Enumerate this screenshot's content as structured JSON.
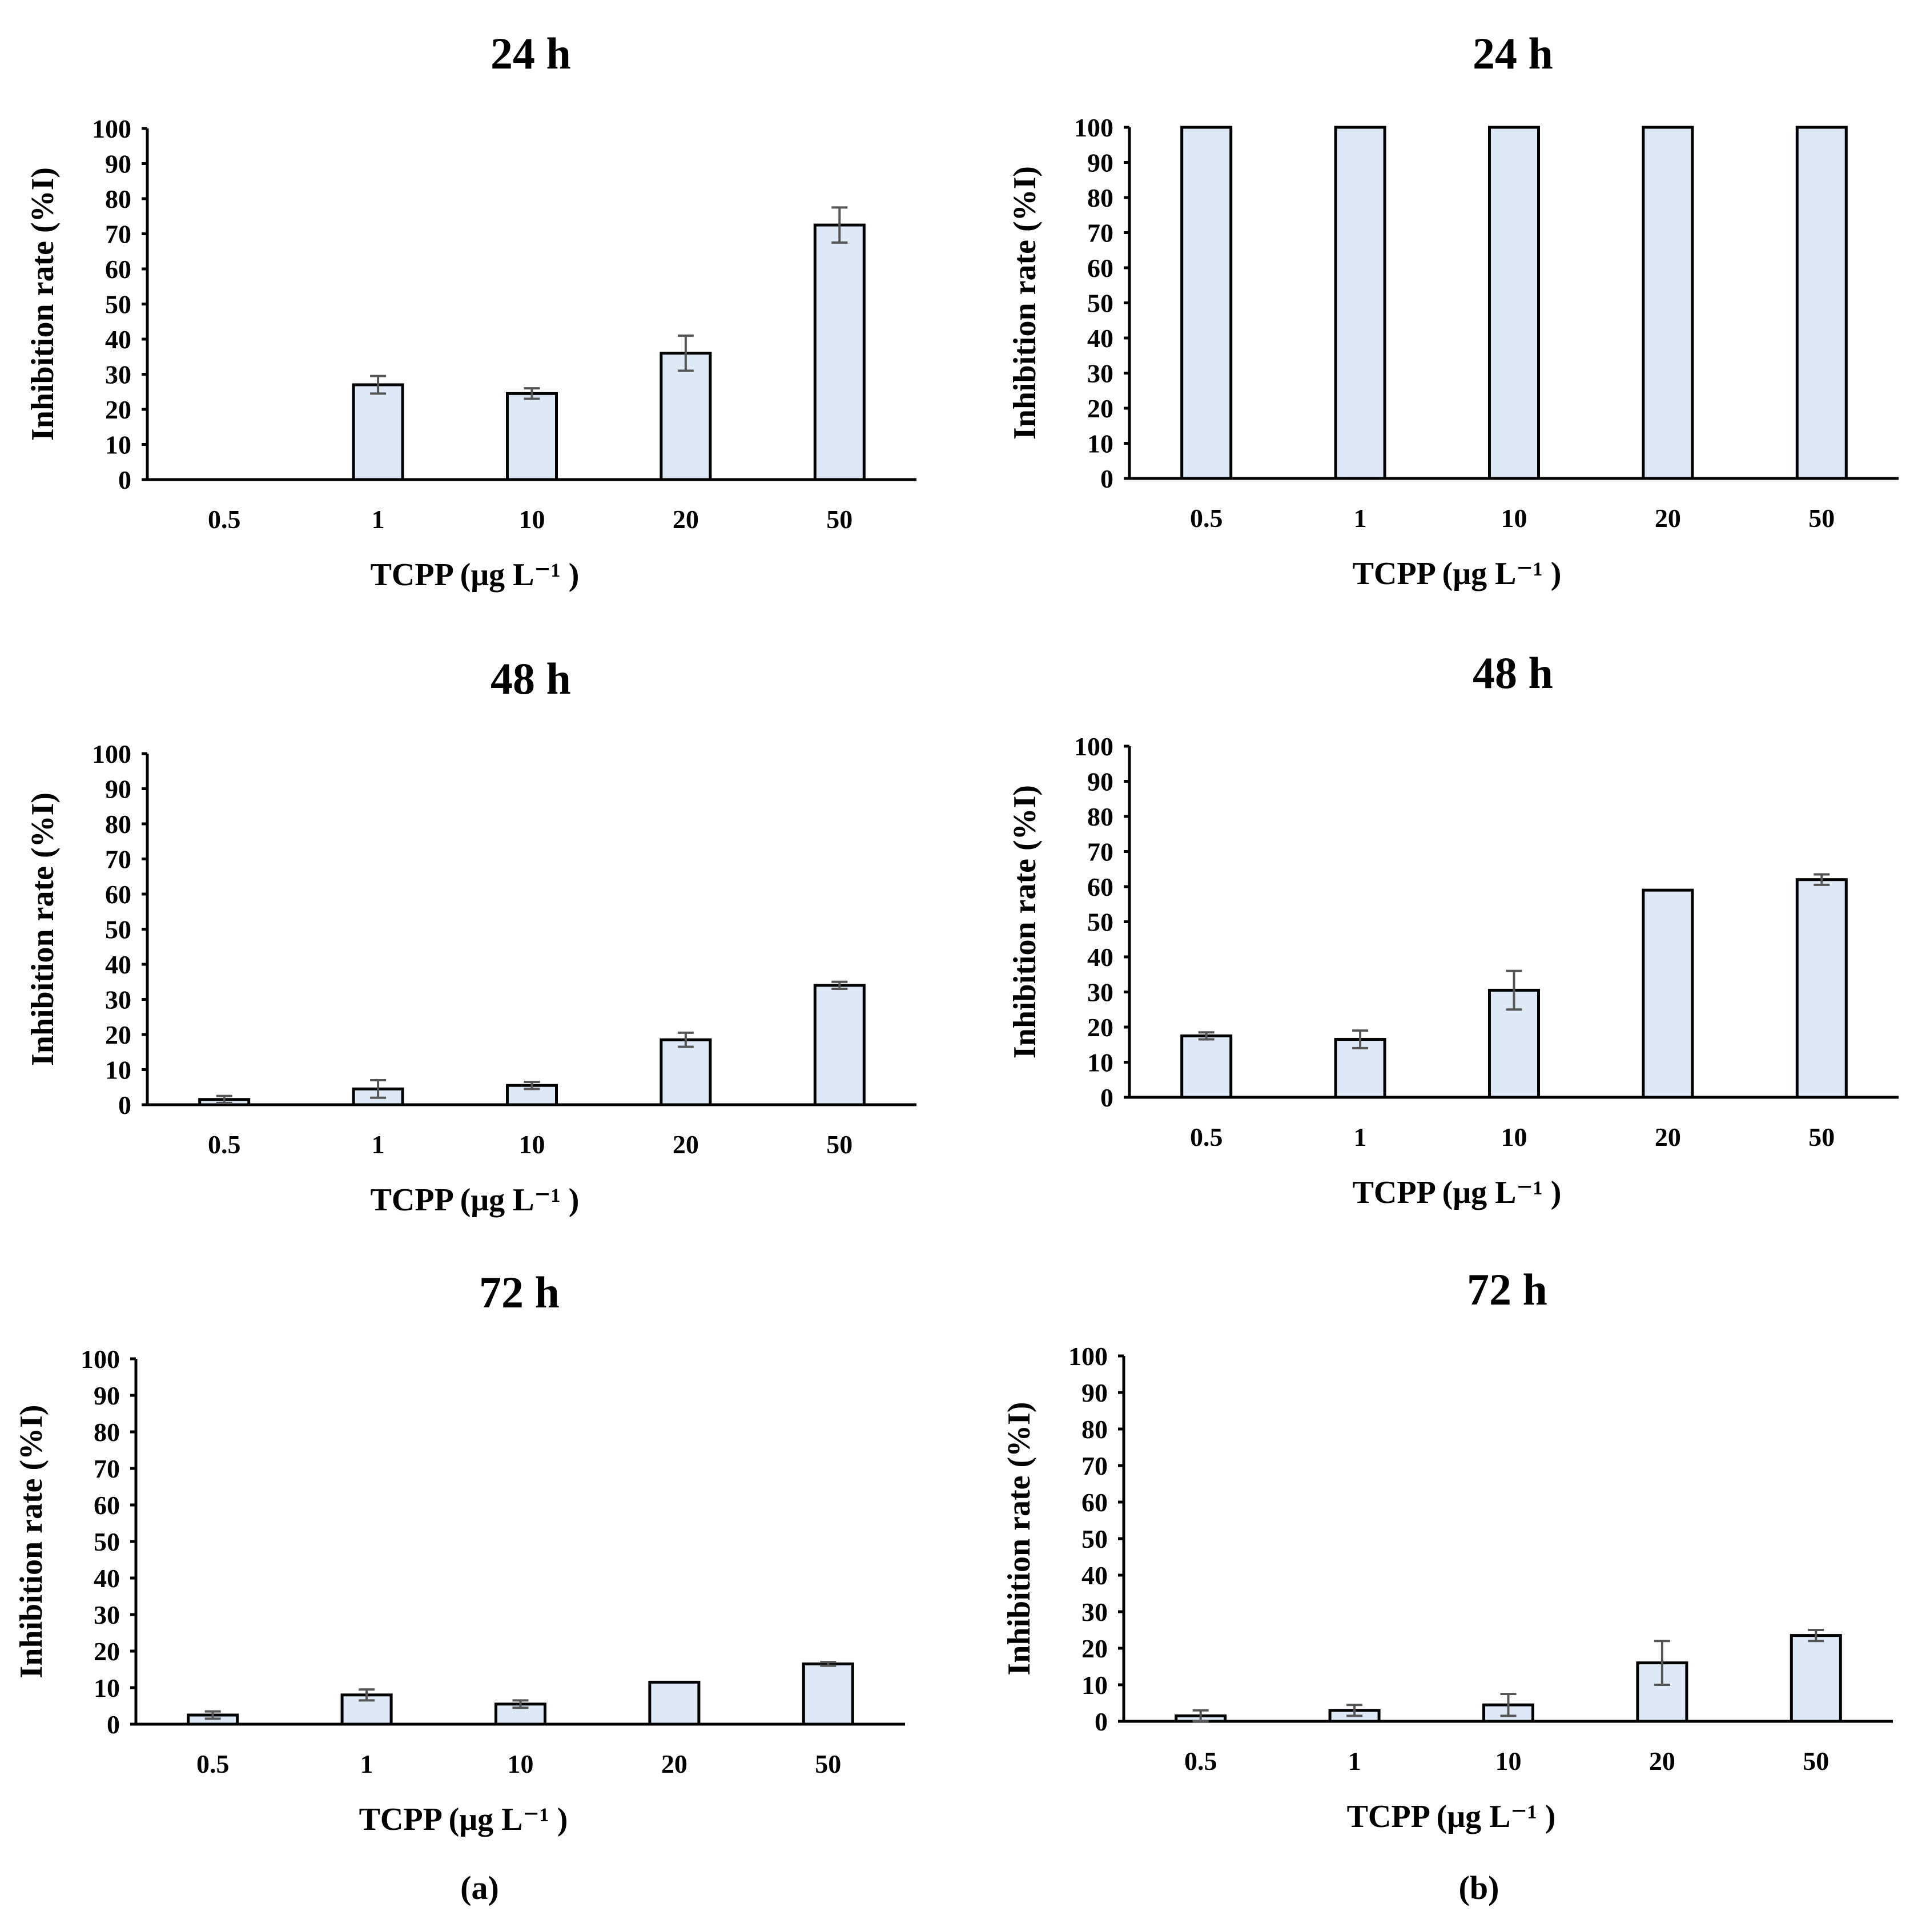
{
  "figure": {
    "bar_color": "#dde9f6",
    "panel_labels": [
      "(a)",
      "(b)"
    ]
  },
  "chart_data": [
    {
      "type": "bar",
      "title": "24 h",
      "panel": "(a)",
      "categories": [
        "0.5",
        "1",
        "10",
        "20",
        "50"
      ],
      "values": [
        0,
        27,
        24.5,
        36,
        72.5
      ],
      "errors": [
        0,
        2.5,
        1.5,
        5,
        5
      ],
      "xlabel": "TCPP (μg L⁻¹ )",
      "ylabel": "Inhibition rate (%I)",
      "ylim": [
        0,
        100
      ],
      "yticks": [
        "0",
        "10",
        "20",
        "30",
        "40",
        "50",
        "60",
        "70",
        "80",
        "90",
        "100"
      ]
    },
    {
      "type": "bar",
      "title": "24 h",
      "panel": "(b)",
      "categories": [
        "0.5",
        "1",
        "10",
        "20",
        "50"
      ],
      "values": [
        100,
        100,
        100,
        100,
        100
      ],
      "errors": [
        0,
        0,
        0,
        0,
        0
      ],
      "xlabel": "TCPP (μg L⁻¹ )",
      "ylabel": "Inhibition rate (%I)",
      "ylim": [
        0,
        100
      ],
      "yticks": [
        "0",
        "10",
        "20",
        "30",
        "40",
        "50",
        "60",
        "70",
        "80",
        "90",
        "100"
      ]
    },
    {
      "type": "bar",
      "title": "48 h",
      "panel": "(a)",
      "categories": [
        "0.5",
        "1",
        "10",
        "20",
        "50"
      ],
      "values": [
        1.5,
        4.5,
        5.5,
        18.5,
        34
      ],
      "errors": [
        1,
        2.5,
        1,
        2,
        1
      ],
      "xlabel": "TCPP (μg L⁻¹ )",
      "ylabel": "Inhibition rate (%I)",
      "ylim": [
        0,
        100
      ],
      "yticks": [
        "0",
        "10",
        "20",
        "30",
        "40",
        "50",
        "60",
        "70",
        "80",
        "90",
        "100"
      ]
    },
    {
      "type": "bar",
      "title": "48 h",
      "panel": "(b)",
      "categories": [
        "0.5",
        "1",
        "10",
        "20",
        "50"
      ],
      "values": [
        17.5,
        16.5,
        30.5,
        59,
        62
      ],
      "errors": [
        1,
        2.5,
        5.5,
        0,
        1.5
      ],
      "xlabel": "TCPP (μg L⁻¹ )",
      "ylabel": "Inhibition rate (%I)",
      "ylim": [
        0,
        100
      ],
      "yticks": [
        "0",
        "10",
        "20",
        "30",
        "40",
        "50",
        "60",
        "70",
        "80",
        "90",
        "100"
      ]
    },
    {
      "type": "bar",
      "title": "72 h",
      "panel": "(a)",
      "categories": [
        "0.5",
        "1",
        "10",
        "20",
        "50"
      ],
      "values": [
        2.5,
        8,
        5.5,
        11.5,
        16.5
      ],
      "errors": [
        1,
        1.5,
        1,
        0,
        0.5
      ],
      "xlabel": "TCPP (μg L⁻¹ )",
      "ylabel": "Inhibition rate (%I)",
      "ylim": [
        0,
        100
      ],
      "yticks": [
        "0",
        "10",
        "20",
        "30",
        "40",
        "50",
        "60",
        "70",
        "80",
        "90",
        "100"
      ]
    },
    {
      "type": "bar",
      "title": "72 h",
      "panel": "(b)",
      "categories": [
        "0.5",
        "1",
        "10",
        "20",
        "50"
      ],
      "values": [
        1.5,
        3,
        4.5,
        16,
        23.5
      ],
      "errors": [
        1.5,
        1.5,
        3,
        6,
        1.5
      ],
      "xlabel": "TCPP (μg L⁻¹ )",
      "ylabel": "Inhibition rate (%I)",
      "ylim": [
        0,
        100
      ],
      "yticks": [
        "0",
        "10",
        "20",
        "30",
        "40",
        "50",
        "60",
        "70",
        "80",
        "90",
        "100"
      ]
    }
  ]
}
